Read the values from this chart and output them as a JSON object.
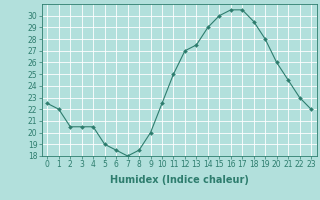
{
  "x": [
    0,
    1,
    2,
    3,
    4,
    5,
    6,
    7,
    8,
    9,
    10,
    11,
    12,
    13,
    14,
    15,
    16,
    17,
    18,
    19,
    20,
    21,
    22,
    23
  ],
  "y": [
    22.5,
    22.0,
    20.5,
    20.5,
    20.5,
    19.0,
    18.5,
    18.0,
    18.5,
    20.0,
    22.5,
    25.0,
    27.0,
    27.5,
    29.0,
    30.0,
    30.5,
    30.5,
    29.5,
    28.0,
    26.0,
    24.5,
    23.0,
    22.0
  ],
  "line_color": "#2e7d6e",
  "marker": "D",
  "marker_size": 2.0,
  "bg_color": "#b2e0dc",
  "grid_color": "#ffffff",
  "xlabel": "Humidex (Indice chaleur)",
  "xlim": [
    -0.5,
    23.5
  ],
  "ylim": [
    18,
    31
  ],
  "yticks": [
    18,
    19,
    20,
    21,
    22,
    23,
    24,
    25,
    26,
    27,
    28,
    29,
    30
  ],
  "xticks": [
    0,
    1,
    2,
    3,
    4,
    5,
    6,
    7,
    8,
    9,
    10,
    11,
    12,
    13,
    14,
    15,
    16,
    17,
    18,
    19,
    20,
    21,
    22,
    23
  ],
  "tick_label_fontsize": 5.5,
  "xlabel_fontsize": 7.0,
  "tick_color": "#2e7d6e",
  "axis_color": "#2e7d6e"
}
